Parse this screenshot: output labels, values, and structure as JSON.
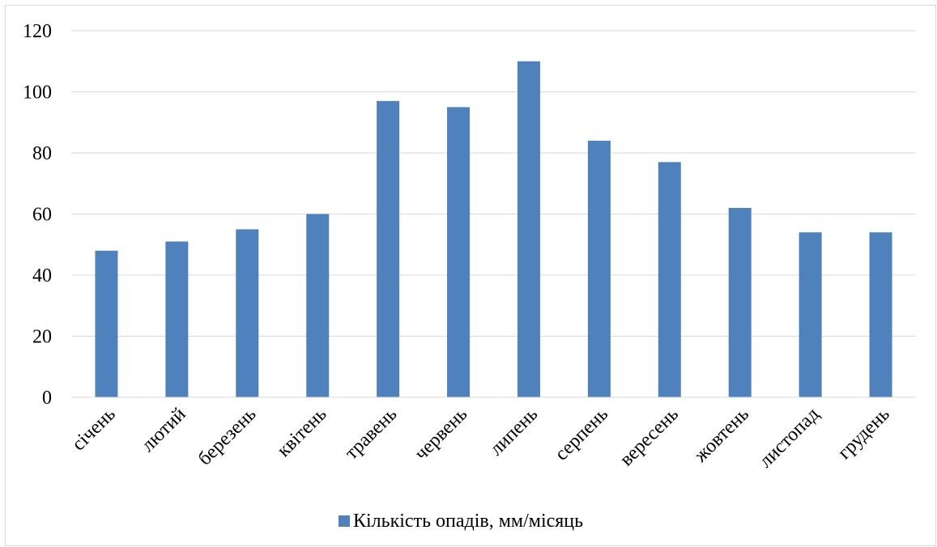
{
  "chart_data": {
    "type": "bar",
    "title": "",
    "xlabel": "",
    "ylabel": "",
    "categories": [
      "січень",
      "лютий",
      "березень",
      "квітень",
      "травень",
      "червень",
      "липень",
      "серпень",
      "вересень",
      "жовтень",
      "листопад",
      "грудень"
    ],
    "series": [
      {
        "name": "Кількість опадів, мм/місяць",
        "color": "#4f81bd",
        "values": [
          48,
          51,
          55,
          60,
          97,
          95,
          110,
          84,
          77,
          62,
          54,
          54
        ]
      }
    ],
    "ylim": [
      0,
      120
    ],
    "yticks": [
      "0",
      "20",
      "40",
      "60",
      "80",
      "100",
      "120"
    ],
    "grid": true,
    "gridline_color": "#d9d9d9",
    "legend_position": "bottom"
  }
}
